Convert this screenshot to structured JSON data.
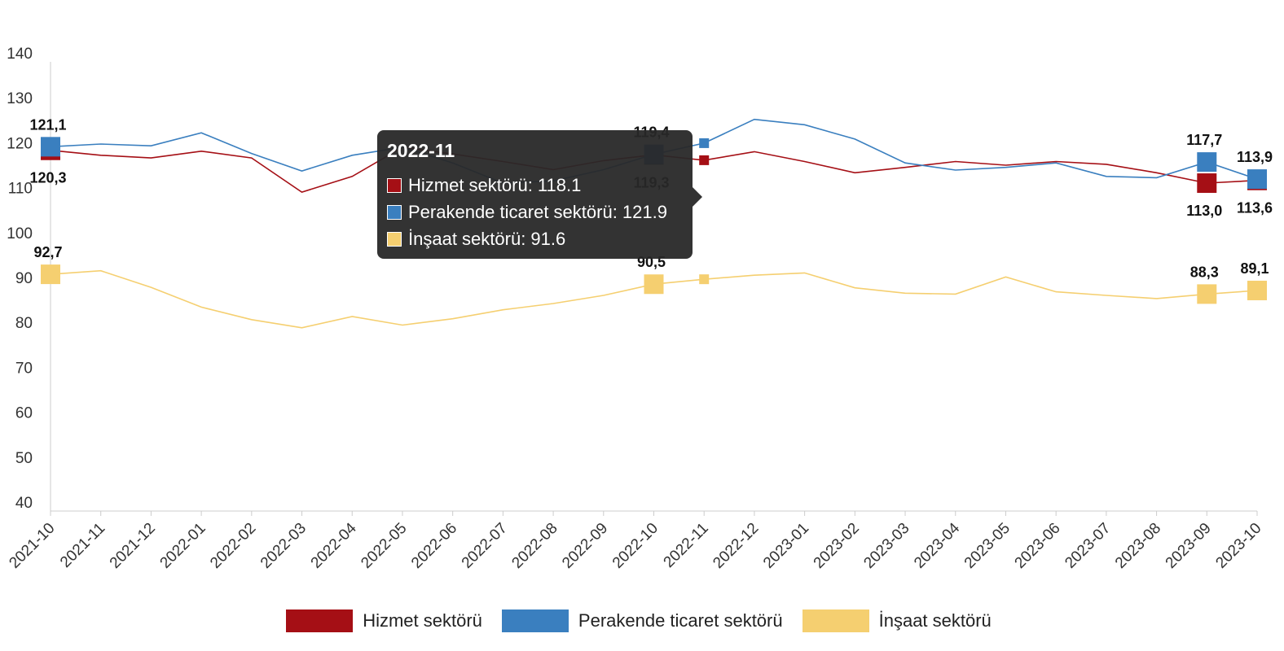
{
  "chart_data": {
    "type": "line",
    "categories": [
      "2021-10",
      "2021-11",
      "2021-12",
      "2022-01",
      "2022-02",
      "2022-03",
      "2022-04",
      "2022-05",
      "2022-06",
      "2022-07",
      "2022-08",
      "2022-09",
      "2022-10",
      "2022-11",
      "2022-12",
      "2023-01",
      "2023-02",
      "2023-03",
      "2023-04",
      "2023-05",
      "2023-06",
      "2023-07",
      "2023-08",
      "2023-09",
      "2023-10"
    ],
    "ylim": [
      40,
      140
    ],
    "yticks": [
      40,
      50,
      60,
      70,
      80,
      90,
      100,
      110,
      120,
      130,
      140
    ],
    "grid": false,
    "legend_position": "bottom",
    "series": [
      {
        "name": "Hizmet sektörü",
        "color": "#a50f15",
        "values": [
          120.3,
          119.2,
          118.6,
          120.1,
          118.6,
          111.0,
          114.5,
          121.0,
          119.5,
          117.8,
          116.0,
          118.0,
          119.3,
          118.1,
          120.0,
          117.8,
          115.3,
          116.5,
          117.8,
          117.0,
          117.8,
          117.2,
          115.3,
          113.0,
          113.6
        ],
        "labels": [
          {
            "index": 0,
            "text": "120,3",
            "position": "below"
          },
          {
            "index": 12,
            "text": "119,3",
            "position": "below"
          },
          {
            "index": 23,
            "text": "113,0",
            "position": "below"
          },
          {
            "index": 24,
            "text": "113,6",
            "position": "below"
          }
        ]
      },
      {
        "name": "Perakende ticaret sektörü",
        "color": "#3a7fbf",
        "values": [
          121.1,
          121.7,
          121.3,
          124.2,
          119.6,
          115.7,
          119.2,
          121.0,
          117.5,
          113.0,
          113.5,
          116.0,
          119.4,
          121.9,
          127.2,
          126.0,
          122.8,
          117.5,
          115.9,
          116.5,
          117.5,
          114.5,
          114.2,
          117.7,
          113.9
        ],
        "labels": [
          {
            "index": 0,
            "text": "121,1",
            "position": "above"
          },
          {
            "index": 12,
            "text": "119,4",
            "position": "above"
          },
          {
            "index": 23,
            "text": "117,7",
            "position": "above"
          },
          {
            "index": 24,
            "text": "113,9",
            "position": "above"
          }
        ]
      },
      {
        "name": "İnşaat sektörü",
        "color": "#f5cf70",
        "values": [
          92.7,
          93.5,
          89.8,
          85.4,
          82.6,
          80.8,
          83.3,
          81.4,
          82.8,
          84.8,
          86.2,
          88.0,
          90.5,
          91.6,
          92.5,
          93.0,
          89.7,
          88.5,
          88.3,
          92.1,
          88.8,
          88.0,
          87.3,
          88.3,
          89.1
        ],
        "labels": [
          {
            "index": 0,
            "text": "92,7",
            "position": "above"
          },
          {
            "index": 12,
            "text": "90,5",
            "position": "above"
          },
          {
            "index": 23,
            "text": "88,3",
            "position": "above"
          },
          {
            "index": 24,
            "text": "89,1",
            "position": "above"
          }
        ]
      }
    ],
    "highlighted_indices": [
      0,
      12,
      23,
      24
    ],
    "hover_index": 13
  },
  "tooltip": {
    "title": "2022-11",
    "rows": [
      {
        "label": "Hizmet sektörü: 118.1",
        "color": "#a50f15"
      },
      {
        "label": "Perakende ticaret sektörü: 121.9",
        "color": "#3a7fbf"
      },
      {
        "label": "İnşaat sektörü: 91.6",
        "color": "#f5cf70"
      }
    ]
  },
  "legend": [
    {
      "label": "Hizmet sektörü",
      "color": "#a50f15"
    },
    {
      "label": "Perakende ticaret sektörü",
      "color": "#3a7fbf"
    },
    {
      "label": "İnşaat sektörü",
      "color": "#f5cf70"
    }
  ]
}
